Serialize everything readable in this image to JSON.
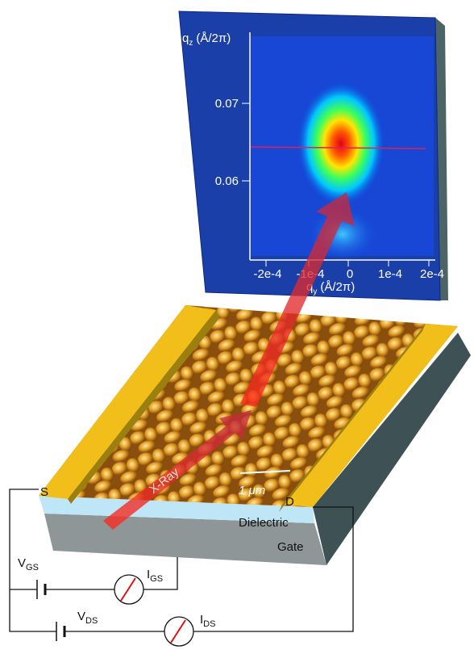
{
  "detector": {
    "y_axis_label": {
      "main": "q",
      "sub": "z",
      "unit": "(Å/2π)"
    },
    "y_ticks": [
      "0.07",
      "0.06"
    ],
    "x_ticks": [
      "-2e-4",
      "-1e-4",
      "0",
      "1e-4",
      "2e-4"
    ],
    "x_axis_label": {
      "main": "q",
      "sub": "y",
      "unit": "(Å/2π)"
    }
  },
  "device": {
    "source": "S",
    "drain": "D",
    "dielectric": "Dielectric",
    "gate": "Gate",
    "beam": "X-Ray",
    "scale_bar": "1 μm"
  },
  "circuit": {
    "vgs": {
      "main": "V",
      "sub": "GS"
    },
    "igs": {
      "main": "I",
      "sub": "GS"
    },
    "vds": {
      "main": "V",
      "sub": "DS"
    },
    "ids": {
      "main": "I",
      "sub": "DS"
    }
  }
}
